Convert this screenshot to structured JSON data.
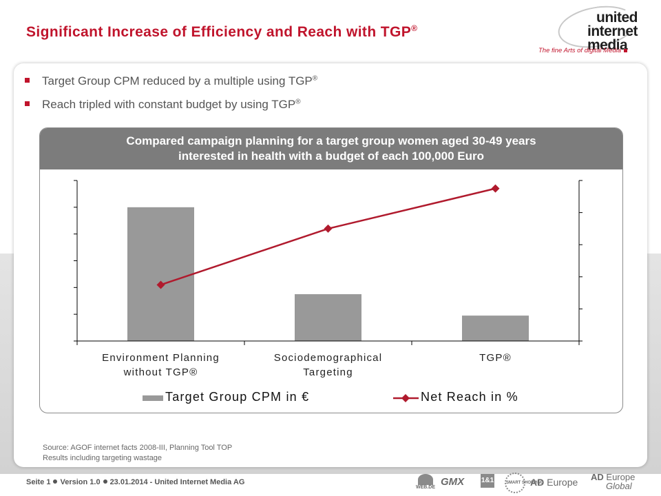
{
  "header": {
    "title": "Significant Increase of Efficiency and Reach with TGP",
    "title_sup": "®"
  },
  "logo": {
    "line1": "united",
    "line2": "internet",
    "line3": "media",
    "tagline": "The fine Arts of digital Media"
  },
  "bullets": [
    {
      "text": "Target Group CPM reduced by a multiple using TGP",
      "sup": "®"
    },
    {
      "text": "Reach tripled with constant budget by using TGP",
      "sup": "®"
    }
  ],
  "chart_box": {
    "header_line1": "Compared campaign planning for a target group women aged 30-49 years",
    "header_line2": "interested in health with a budget of each 100,000 Euro"
  },
  "chart_data": {
    "type": "bar",
    "categories": [
      [
        "Environment Planning",
        "without TGP®"
      ],
      [
        "Sociodemographical",
        "Targeting"
      ],
      [
        "TGP®"
      ]
    ],
    "y_left_range": [
      0,
      6
    ],
    "y_right_range": [
      0,
      5
    ],
    "y_left_ticks": 6,
    "y_right_ticks": 5,
    "tick_labels_shown": false,
    "series": [
      {
        "name": "Target Group CPM in €",
        "kind": "bar",
        "axis": "left",
        "color": "#999999",
        "values": [
          5.0,
          1.75,
          0.95
        ]
      },
      {
        "name": "Net Reach in %",
        "kind": "line",
        "axis": "right",
        "color": "#b01a2d",
        "marker": "diamond",
        "values": [
          1.75,
          3.5,
          4.75
        ]
      }
    ],
    "legend_position": "bottom"
  },
  "source": {
    "line1": "Source: AGOF internet facts 2008-III,  Planning Tool TOP",
    "line2": "Results including targeting wastage"
  },
  "footer": {
    "page": "Seite 1",
    "version": "Version 1.0",
    "date_company": "23.01.2014 - United Internet Media AG"
  },
  "brands": {
    "webde": "WEB.DE",
    "gmx": "GMX",
    "one_and_one": "1&1",
    "smart": "SMART SHOPPING",
    "ad_europe_a": "AD",
    "ad_europe_b": "Europe",
    "ad_europe_global_a": "AD",
    "ad_europe_global_b": "Europe",
    "ad_europe_global_c": "Global"
  }
}
